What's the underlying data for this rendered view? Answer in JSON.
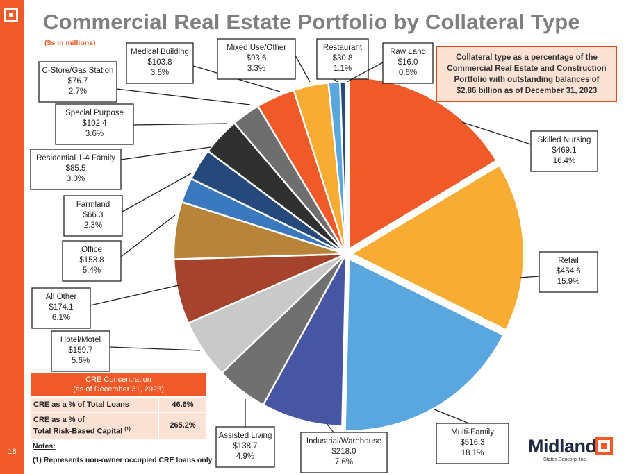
{
  "slide": {
    "title": "Commercial Real Estate Portfolio by Collateral Type",
    "subtitle": "($s in millions)",
    "page_number": "18",
    "note_box": "Collateral type as a percentage of the Commercial Real Estate and Construction Portfolio with outstanding balances of $2.86 billion as of December 31, 2023"
  },
  "chart_data": {
    "type": "pie",
    "title": "Commercial Real Estate Portfolio by Collateral Type",
    "units": "$s in millions",
    "slices": [
      {
        "name": "Skilled Nursing",
        "value_label": "$469.1",
        "value": 469.1,
        "pct": 16.4,
        "pct_label": "16.4%",
        "color": "#f05a28"
      },
      {
        "name": "Retail",
        "value_label": "$454.6",
        "value": 454.6,
        "pct": 15.9,
        "pct_label": "15.9%",
        "color": "#f7ac33"
      },
      {
        "name": "Multi-Family",
        "value_label": "$516.3",
        "value": 516.3,
        "pct": 18.1,
        "pct_label": "18.1%",
        "color": "#5aa7df"
      },
      {
        "name": "Industrial/Warehouse",
        "value_label": "$218.0",
        "value": 218.0,
        "pct": 7.6,
        "pct_label": "7.6%",
        "color": "#4656a3"
      },
      {
        "name": "Assisted Living",
        "value_label": "$138.7",
        "value": 138.7,
        "pct": 4.9,
        "pct_label": "4.9%",
        "color": "#707070"
      },
      {
        "name": "Hotel/Motel",
        "value_label": "$159.7",
        "value": 159.7,
        "pct": 5.6,
        "pct_label": "5.6%",
        "color": "#c9c9c9"
      },
      {
        "name": "All Other",
        "value_label": "$174.1",
        "value": 174.1,
        "pct": 6.1,
        "pct_label": "6.1%",
        "color": "#a6432c"
      },
      {
        "name": "Office",
        "value_label": "$153.8",
        "value": 153.8,
        "pct": 5.4,
        "pct_label": "5.4%",
        "color": "#b8843a"
      },
      {
        "name": "Farmland",
        "value_label": "$66.3",
        "value": 66.3,
        "pct": 2.3,
        "pct_label": "2.3%",
        "color": "#3a78bf"
      },
      {
        "name": "Residential 1-4 Family",
        "value_label": "$85.5",
        "value": 85.5,
        "pct": 3.0,
        "pct_label": "3.0%",
        "color": "#25497b"
      },
      {
        "name": "Special Purpose",
        "value_label": "$102.4",
        "value": 102.4,
        "pct": 3.6,
        "pct_label": "3.6%",
        "color": "#303030"
      },
      {
        "name": "C-Store/Gas Station",
        "value_label": "$76.7",
        "value": 76.7,
        "pct": 2.7,
        "pct_label": "2.7%",
        "color": "#6e6e6e"
      },
      {
        "name": "Medical Building",
        "value_label": "$103.8",
        "value": 103.8,
        "pct": 3.6,
        "pct_label": "3.6%",
        "color": "#f05a28"
      },
      {
        "name": "Mixed Use/Other",
        "value_label": "$93.6",
        "value": 93.6,
        "pct": 3.3,
        "pct_label": "3.3%",
        "color": "#f7ac33"
      },
      {
        "name": "Restaurant",
        "value_label": "$30.8",
        "value": 30.8,
        "pct": 1.1,
        "pct_label": "1.1%",
        "color": "#5aa7df"
      },
      {
        "name": "Raw Land",
        "value_label": "$16.0",
        "value": 16.0,
        "pct": 0.6,
        "pct_label": "0.6%",
        "color": "#25497b"
      }
    ]
  },
  "cre_table": {
    "heading_line1": "CRE Concentration",
    "heading_line2": "(as of December 31, 2023)",
    "row1_label": "CRE as a % of Total Loans",
    "row1_value": "46.6%",
    "row2_label_line1": "CRE as a % of",
    "row2_label_line2": "Total Risk-Based Capital",
    "row2_footnote": "(1)",
    "row2_value": "265.2%"
  },
  "notes": {
    "heading": "Notes:",
    "item1": "(1)   Represents non-owner occupied CRE loans only"
  },
  "brand": {
    "name": "Midland",
    "tagline": "States Bancorp, Inc."
  }
}
